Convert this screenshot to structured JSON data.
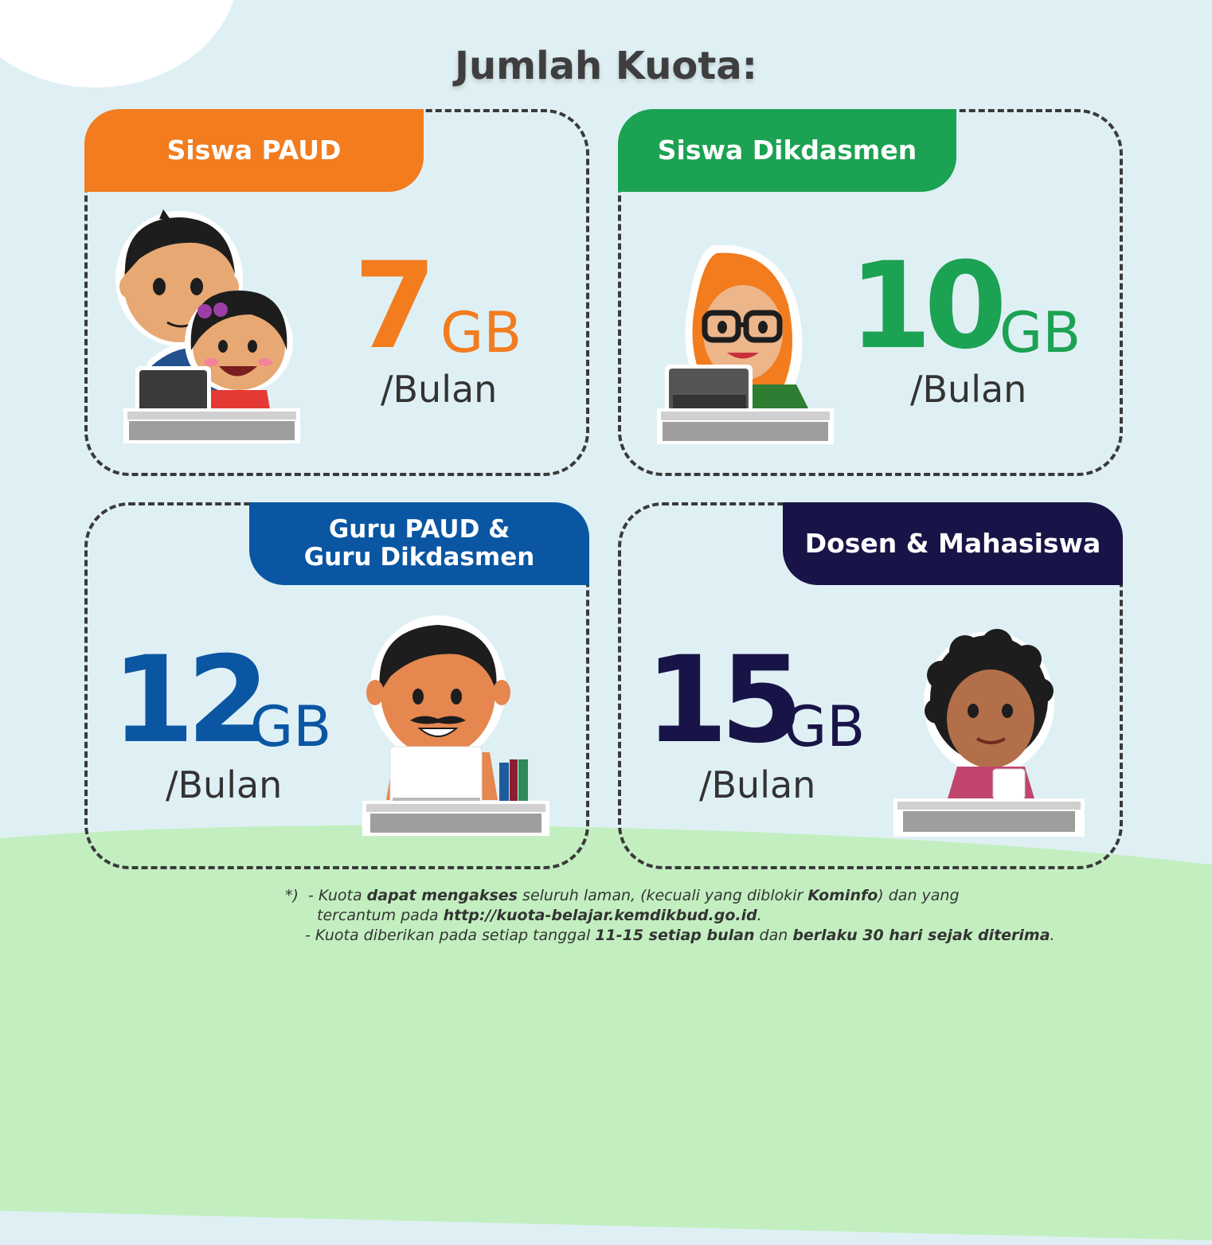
{
  "title": "Jumlah Kuota:",
  "cards": [
    {
      "label": "Siswa PAUD",
      "amount": "7",
      "unit": "GB",
      "period": "/Bulan",
      "color": "#f27c1e"
    },
    {
      "label": "Siswa Dikdasmen",
      "amount": "10",
      "unit": "GB",
      "period": "/Bulan",
      "color": "#1ba252"
    },
    {
      "label_line1": "Guru PAUD &",
      "label_line2": "Guru Dikdasmen",
      "amount": "12",
      "unit": "GB",
      "period": "/Bulan",
      "color": "#0a56a3"
    },
    {
      "label": "Dosen & Mahasiswa",
      "amount": "15",
      "unit": "GB",
      "period": "/Bulan",
      "color": "#191447"
    }
  ],
  "note": {
    "marker": "*)",
    "line1_a": "- Kuota ",
    "line1_b": "dapat mengakses",
    "line1_c": " seluruh laman, (kecuali yang diblokir ",
    "line1_d": "Kominfo",
    "line1_e": ") dan yang",
    "line2_a": "tercantum pada ",
    "line2_b": "http://kuota-belajar.kemdikbud.go.id",
    "line2_c": ".",
    "line3_a": "- Kuota diberikan pada setiap tanggal ",
    "line3_b": "11-15 setiap bulan",
    "line3_c": " dan ",
    "line3_d": "berlaku 30 hari sejak diterima",
    "line3_e": "."
  }
}
